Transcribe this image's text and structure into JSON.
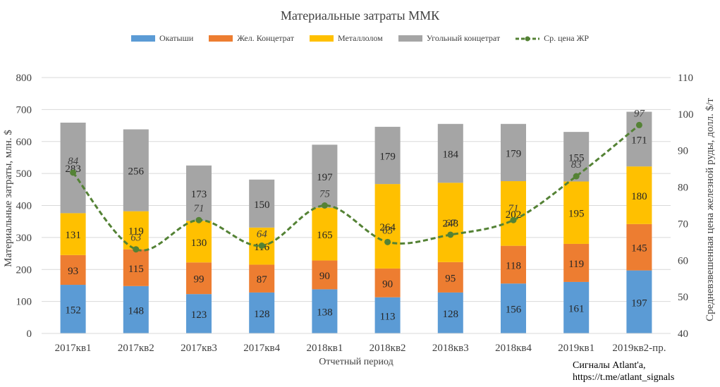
{
  "title": "Материальные затраты ММК",
  "credit": {
    "line1": "Сигналы Atlant'a,",
    "line2": "https://t.me/atlant_signals"
  },
  "colors": {
    "pellets": "#5B9BD5",
    "concentrate": "#ED7D31",
    "scrap": "#FFC000",
    "coal": "#A5A5A5",
    "price": "#548235"
  },
  "chart_data": {
    "type": "bar",
    "stacked": true,
    "title": "Материальные затраты ММК",
    "xlabel": "Отчетный период",
    "ylabel": "Материальные затраты, млн. $",
    "y2label": "Средневзвешенная цена железной руды, долл. $/т",
    "ylim": [
      0,
      800
    ],
    "y2lim": [
      40,
      110
    ],
    "yticks": [
      0,
      100,
      200,
      300,
      400,
      500,
      600,
      700,
      800
    ],
    "y2ticks": [
      40,
      50,
      60,
      70,
      80,
      90,
      100,
      110
    ],
    "grid": true,
    "legend_position": "top",
    "categories": [
      "2017кв1",
      "2017кв2",
      "2017кв3",
      "2017кв4",
      "2018кв1",
      "2018кв2",
      "2018кв3",
      "2018кв4",
      "2019кв1",
      "2019кв2-пр."
    ],
    "series": [
      {
        "name": "Окатыши",
        "key": "pellets",
        "values": [
          152,
          148,
          123,
          128,
          138,
          113,
          128,
          156,
          161,
          197
        ]
      },
      {
        "name": "Жел. Концетрат",
        "key": "concentrate",
        "values": [
          93,
          115,
          99,
          87,
          90,
          90,
          95,
          118,
          119,
          145
        ]
      },
      {
        "name": "Металлолом",
        "key": "scrap",
        "values": [
          131,
          119,
          130,
          116,
          165,
          264,
          248,
          202,
          195,
          180
        ]
      },
      {
        "name": "Угольный концетрат",
        "key": "coal",
        "values": [
          283,
          256,
          173,
          150,
          197,
          179,
          184,
          179,
          155,
          171
        ]
      }
    ],
    "line": {
      "name": "Ср. цена ЖР",
      "key": "price",
      "axis": "right",
      "values": [
        84,
        63,
        71,
        64,
        75,
        65,
        67,
        71,
        83,
        97
      ]
    }
  }
}
